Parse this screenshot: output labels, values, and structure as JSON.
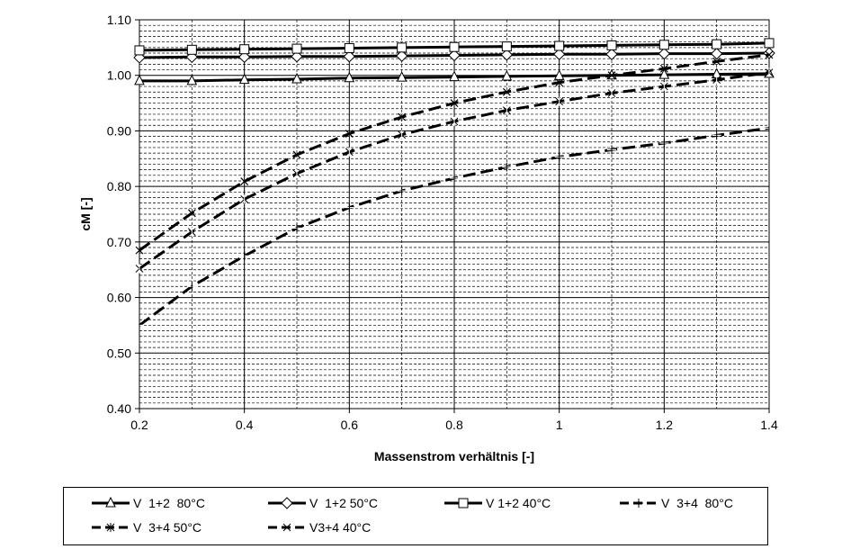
{
  "chart_data": {
    "type": "line",
    "title": "",
    "xlabel": "Massenstrom verhältnis [-]",
    "ylabel": "cM [-]",
    "xlim": [
      0.2,
      1.4
    ],
    "ylim": [
      0.4,
      1.1
    ],
    "x_ticks": [
      "0.2",
      "0.4",
      "0.6",
      "0.8",
      "1",
      "1.2",
      "1.4"
    ],
    "y_ticks": [
      "0.40",
      "0.50",
      "0.60",
      "0.70",
      "0.80",
      "0.90",
      "1.00",
      "1.10"
    ],
    "grid": true,
    "legend_position": "bottom",
    "x": [
      0.2,
      0.3,
      0.4,
      0.5,
      0.6,
      0.7,
      0.8,
      0.9,
      1.0,
      1.1,
      1.2,
      1.3,
      1.4
    ],
    "series": [
      {
        "name": "V  1+2  80°C",
        "marker": "triangle",
        "dash": "solid",
        "values": [
          0.99,
          0.99,
          0.992,
          0.993,
          0.995,
          0.996,
          0.997,
          0.998,
          0.999,
          1.0,
          1.001,
          1.002,
          1.003
        ]
      },
      {
        "name": "V  1+2 50°C",
        "marker": "diamond",
        "dash": "solid",
        "values": [
          1.032,
          1.033,
          1.033,
          1.034,
          1.034,
          1.035,
          1.036,
          1.037,
          1.038,
          1.038,
          1.039,
          1.039,
          1.04
        ]
      },
      {
        "name": "V 1+2 40°C",
        "marker": "square",
        "dash": "solid",
        "values": [
          1.045,
          1.046,
          1.047,
          1.048,
          1.049,
          1.05,
          1.051,
          1.052,
          1.053,
          1.054,
          1.055,
          1.056,
          1.058
        ]
      },
      {
        "name": "V  3+4  80°C",
        "marker": "plus",
        "dash": "dashed",
        "values": [
          0.55,
          0.62,
          0.675,
          0.725,
          0.762,
          0.792,
          0.815,
          0.835,
          0.853,
          0.866,
          0.878,
          0.892,
          0.905
        ]
      },
      {
        "name": "V  3+4 50°C",
        "marker": "star",
        "dash": "dashed",
        "values": [
          0.652,
          0.718,
          0.777,
          0.823,
          0.862,
          0.893,
          0.917,
          0.937,
          0.953,
          0.968,
          0.98,
          0.992,
          1.005
        ]
      },
      {
        "name": "V3+4 40°C",
        "marker": "x",
        "dash": "dashed",
        "values": [
          0.685,
          0.752,
          0.809,
          0.857,
          0.895,
          0.925,
          0.95,
          0.97,
          0.987,
          1.0,
          1.012,
          1.025,
          1.037
        ]
      }
    ]
  }
}
